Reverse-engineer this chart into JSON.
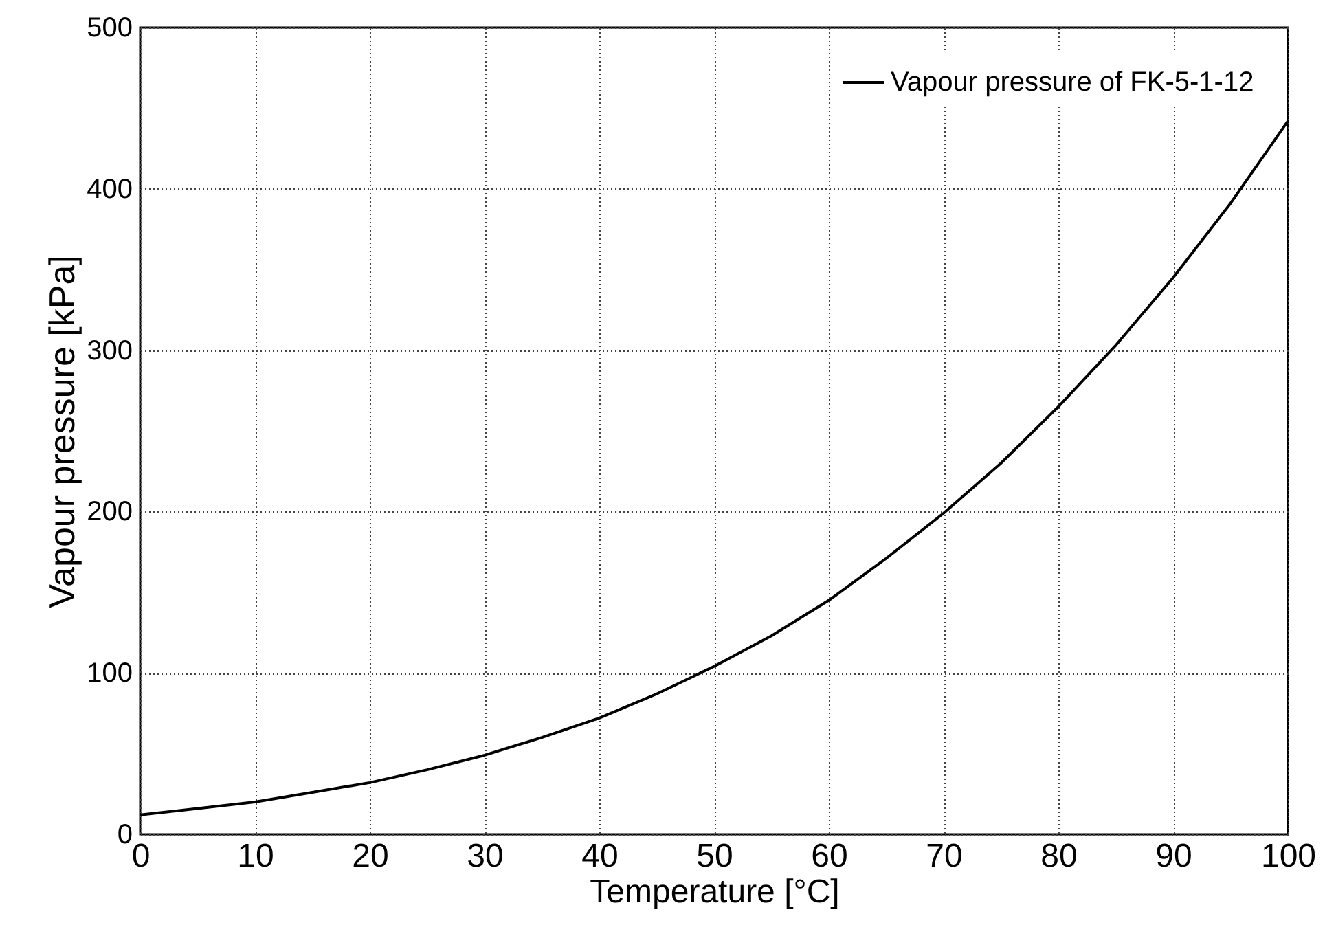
{
  "chart_data": {
    "type": "line",
    "xlabel": "Temperature [°C]",
    "ylabel": "Vapour pressure [kPa]",
    "x": [
      0,
      5,
      10,
      15,
      20,
      25,
      30,
      35,
      40,
      45,
      50,
      55,
      60,
      65,
      70,
      75,
      80,
      85,
      90,
      95,
      100
    ],
    "series": [
      {
        "name": "Vapour pressure of FK-5-1-12",
        "color": "#000000",
        "values": [
          12,
          16,
          20,
          26,
          32,
          40,
          49,
          60,
          72,
          87,
          104,
          123,
          145,
          171,
          199,
          230,
          265,
          303,
          345,
          391,
          442
        ]
      }
    ],
    "xlim": [
      0,
      100
    ],
    "xticks": [
      0,
      10,
      20,
      30,
      40,
      50,
      60,
      70,
      80,
      90,
      100
    ],
    "ylim": [
      0,
      500
    ],
    "yticks": [
      0,
      100,
      200,
      300,
      400,
      500
    ],
    "grid": true,
    "legend": "top right",
    "marker": "none",
    "line_style": "solid"
  }
}
